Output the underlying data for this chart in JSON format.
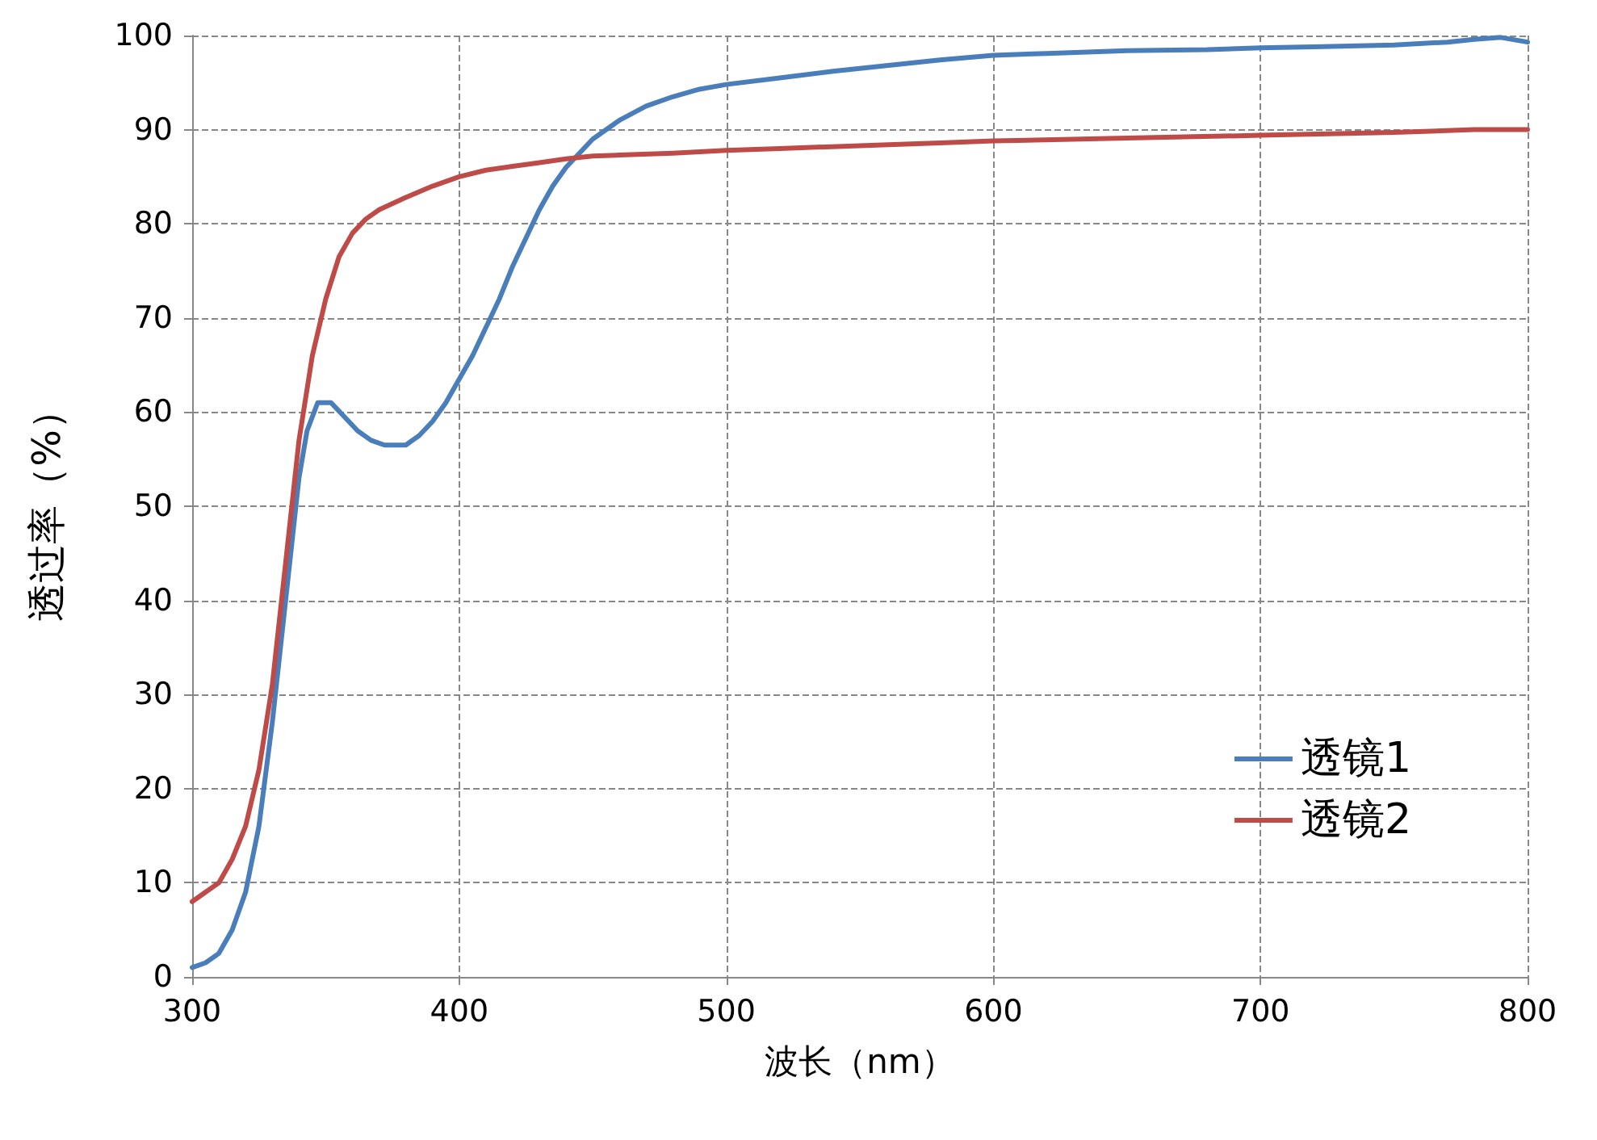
{
  "chart_data": {
    "type": "line",
    "xlabel": "波长（nm）",
    "ylabel": "透过率（%）",
    "xlim": [
      300,
      800
    ],
    "ylim": [
      0,
      100
    ],
    "xticks": [
      300,
      400,
      500,
      600,
      700,
      800
    ],
    "yticks": [
      0,
      10,
      20,
      30,
      40,
      50,
      60,
      70,
      80,
      90,
      100
    ],
    "grid": true,
    "legend": "bottom right",
    "marker": "none",
    "line_style": "solid",
    "series": [
      {
        "name": "透镜1",
        "color": "#4a7ebb",
        "x": [
          300,
          305,
          310,
          315,
          320,
          325,
          330,
          335,
          340,
          343,
          347,
          352,
          357,
          362,
          367,
          372,
          380,
          385,
          390,
          395,
          400,
          405,
          410,
          415,
          420,
          425,
          430,
          435,
          440,
          445,
          450,
          460,
          470,
          480,
          490,
          500,
          520,
          540,
          560,
          580,
          600,
          620,
          650,
          680,
          700,
          720,
          750,
          770,
          780,
          790,
          800
        ],
        "values": [
          1,
          1.5,
          2.5,
          5,
          9,
          16,
          27,
          40,
          53,
          58,
          61,
          61,
          59.5,
          58,
          57,
          56.5,
          56.5,
          57.5,
          59,
          61,
          63.5,
          66,
          69,
          72,
          75.5,
          78.5,
          81.5,
          84,
          86,
          87.5,
          89,
          91,
          92.5,
          93.5,
          94.3,
          94.8,
          95.5,
          96.2,
          96.8,
          97.4,
          97.9,
          98.1,
          98.4,
          98.5,
          98.7,
          98.8,
          99,
          99.3,
          99.6,
          99.8,
          99.3
        ]
      },
      {
        "name": "透镜2",
        "color": "#be4b48",
        "x": [
          300,
          305,
          310,
          315,
          320,
          325,
          330,
          335,
          340,
          345,
          350,
          355,
          360,
          365,
          370,
          380,
          390,
          400,
          410,
          420,
          430,
          440,
          450,
          460,
          480,
          500,
          520,
          550,
          580,
          600,
          650,
          700,
          750,
          780,
          800
        ],
        "values": [
          8,
          9,
          10,
          12.5,
          16,
          22,
          31,
          44,
          57,
          66,
          72,
          76.5,
          79,
          80.5,
          81.5,
          82.8,
          84,
          85,
          85.7,
          86.1,
          86.5,
          86.9,
          87.2,
          87.3,
          87.5,
          87.8,
          88,
          88.3,
          88.6,
          88.8,
          89.1,
          89.4,
          89.7,
          90,
          90
        ]
      }
    ]
  }
}
